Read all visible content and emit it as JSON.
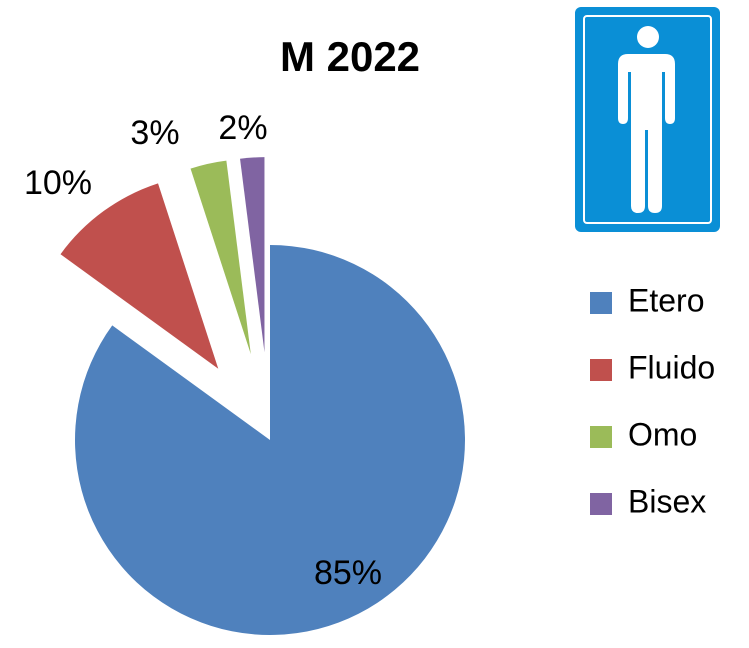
{
  "chart_data": {
    "type": "pie",
    "title": "M 2022",
    "categories": [
      "Etero",
      "Fluido",
      "Omo",
      "Bisex"
    ],
    "values": [
      85,
      10,
      3,
      2
    ],
    "value_labels": [
      "85%",
      "10%",
      "3%",
      "2%"
    ],
    "colors": [
      "#4f81bd",
      "#c0504d",
      "#9bbb59",
      "#8064a2"
    ]
  }
}
